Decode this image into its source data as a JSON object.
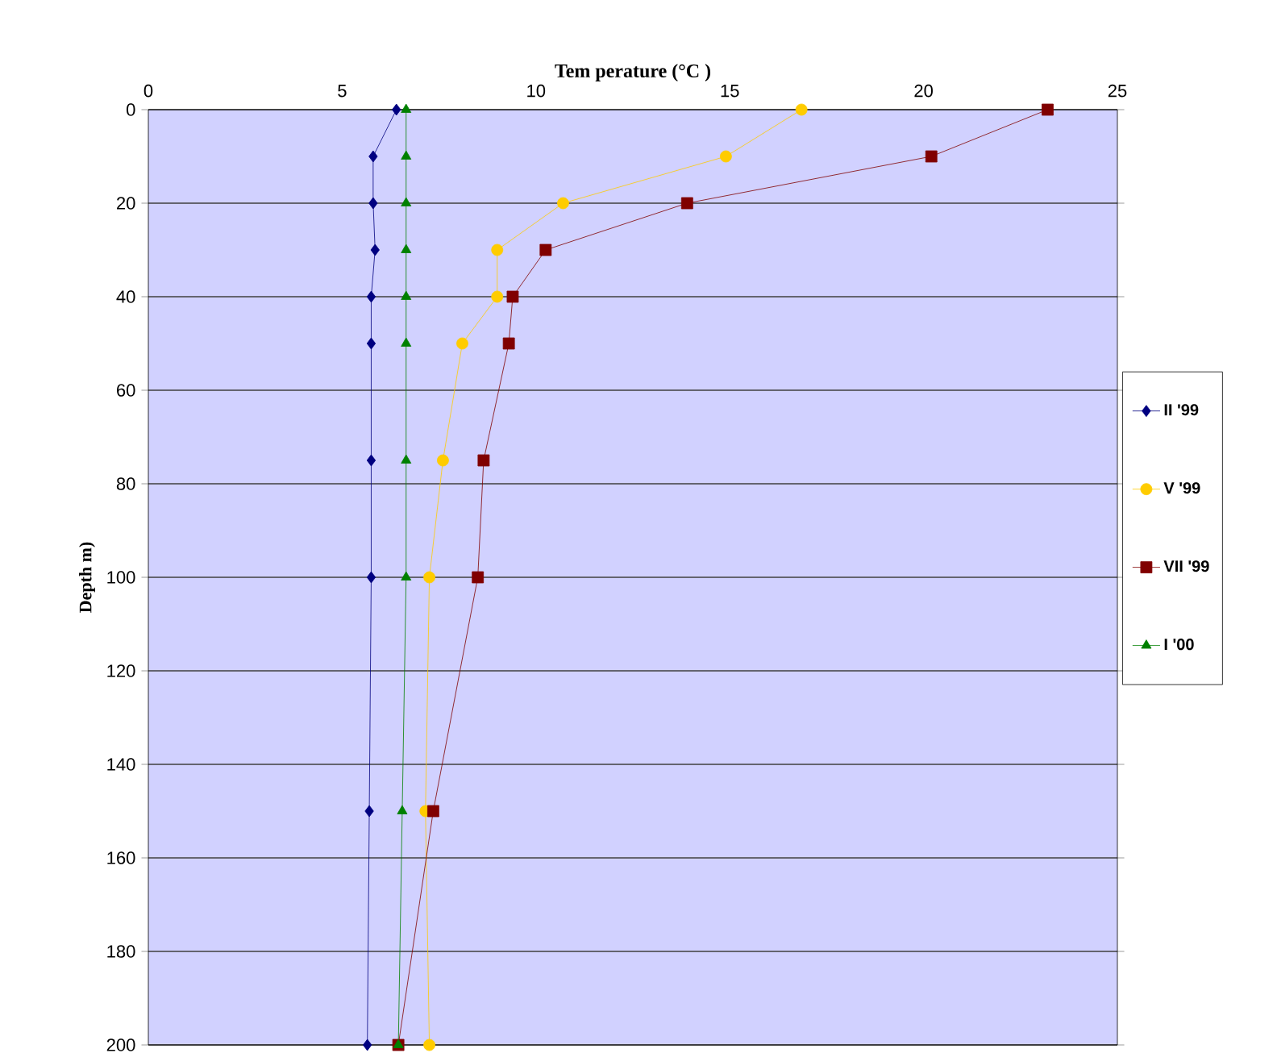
{
  "chart_data": {
    "type": "line",
    "xlabel": "Tem perature (°C )",
    "ylabel": "Depth m)",
    "xlim": [
      0,
      25
    ],
    "xticks": [
      0,
      5,
      10,
      15,
      20,
      25
    ],
    "ylim": [
      200,
      0
    ],
    "yticks": [
      0,
      20,
      40,
      60,
      80,
      100,
      120,
      140,
      160,
      180,
      200
    ],
    "grid": "y",
    "legend": "right",
    "series": [
      {
        "name": "II '99",
        "color": "#000080",
        "marker": "diamond",
        "x": [
          6.4,
          5.8,
          5.8,
          5.85,
          5.75,
          5.75,
          5.75,
          5.75,
          5.7,
          5.65
        ],
        "values": [
          0,
          10,
          20,
          30,
          40,
          50,
          75,
          100,
          150,
          200
        ]
      },
      {
        "name": "V  '99",
        "color": "#ffcc00",
        "marker": "circle",
        "x": [
          16.85,
          14.9,
          10.7,
          9.0,
          9.0,
          8.1,
          7.6,
          7.25,
          7.15,
          7.25
        ],
        "values": [
          0,
          10,
          20,
          30,
          40,
          50,
          75,
          100,
          150,
          200
        ]
      },
      {
        "name": "VII '99",
        "color": "#800000",
        "marker": "square",
        "x": [
          23.2,
          20.2,
          13.9,
          10.25,
          9.4,
          9.3,
          8.65,
          8.5,
          7.35,
          6.45
        ],
        "values": [
          0,
          10,
          20,
          30,
          40,
          50,
          75,
          100,
          150,
          200
        ]
      },
      {
        "name": "I '00",
        "color": "#008000",
        "marker": "triangle",
        "x": [
          6.65,
          6.65,
          6.65,
          6.65,
          6.65,
          6.65,
          6.65,
          6.65,
          6.55,
          6.45
        ],
        "values": [
          0,
          10,
          20,
          30,
          40,
          50,
          75,
          100,
          150,
          200
        ]
      }
    ]
  }
}
